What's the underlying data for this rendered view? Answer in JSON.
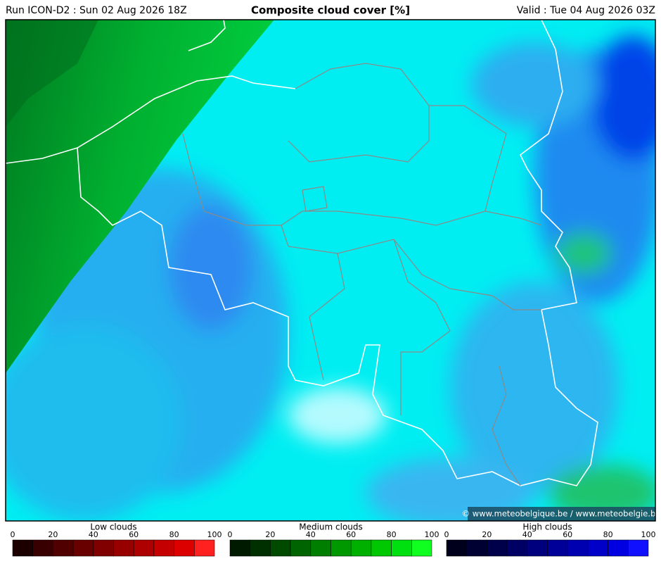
{
  "header": {
    "run": "Run ICON-D2 : Sun 02 Aug 2026 18Z",
    "title": "Composite cloud cover [%]",
    "valid": "Valid : Tue 04 Aug 2026 03Z"
  },
  "map": {
    "credit": "© www.meteobelgique.be / www.meteobelgie.be"
  },
  "legends": [
    {
      "title": "Low clouds",
      "ticks": [
        0,
        20,
        40,
        60,
        80,
        100
      ],
      "colors": [
        "#1c0000",
        "#380000",
        "#500000",
        "#680000",
        "#800000",
        "#980000",
        "#ae0000",
        "#c40000",
        "#dc0000",
        "#ff2020"
      ]
    },
    {
      "title": "Medium clouds",
      "ticks": [
        0,
        20,
        40,
        60,
        80,
        100
      ],
      "colors": [
        "#001a00",
        "#003000",
        "#004a00",
        "#006400",
        "#007e00",
        "#009800",
        "#00b000",
        "#00c800",
        "#00e010",
        "#10ff20"
      ]
    },
    {
      "title": "High clouds",
      "ticks": [
        0,
        20,
        40,
        60,
        80,
        100
      ],
      "colors": [
        "#00001c",
        "#000032",
        "#00004a",
        "#000064",
        "#00007e",
        "#000098",
        "#0000b0",
        "#0000c8",
        "#0000e0",
        "#1010ff"
      ]
    }
  ]
}
